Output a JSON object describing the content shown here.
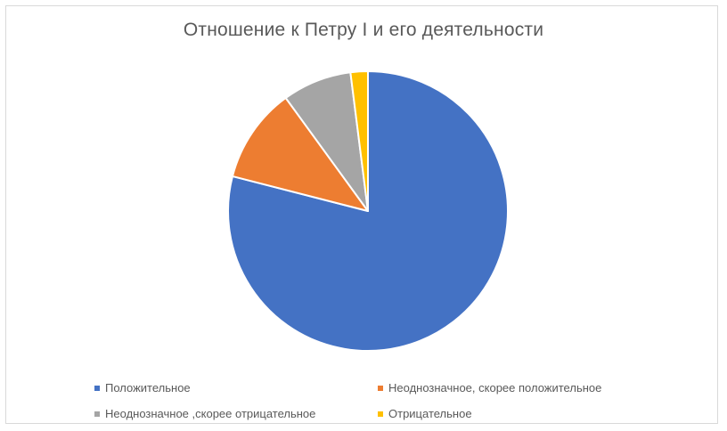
{
  "chart_data": {
    "type": "pie",
    "title": "Отношение к Петру I и его деятельности",
    "categories": [
      "Положительное",
      "Неоднозначное, скорее положительное",
      "Неоднозначное ,скорее отрицательное",
      "Отрицательное"
    ],
    "values": [
      79,
      11,
      8,
      2
    ],
    "colors": [
      "#4472C4",
      "#ED7D31",
      "#A5A5A5",
      "#FFC000"
    ],
    "legend_position": "bottom",
    "start_angle": "12 o'clock",
    "direction": "clockwise"
  }
}
